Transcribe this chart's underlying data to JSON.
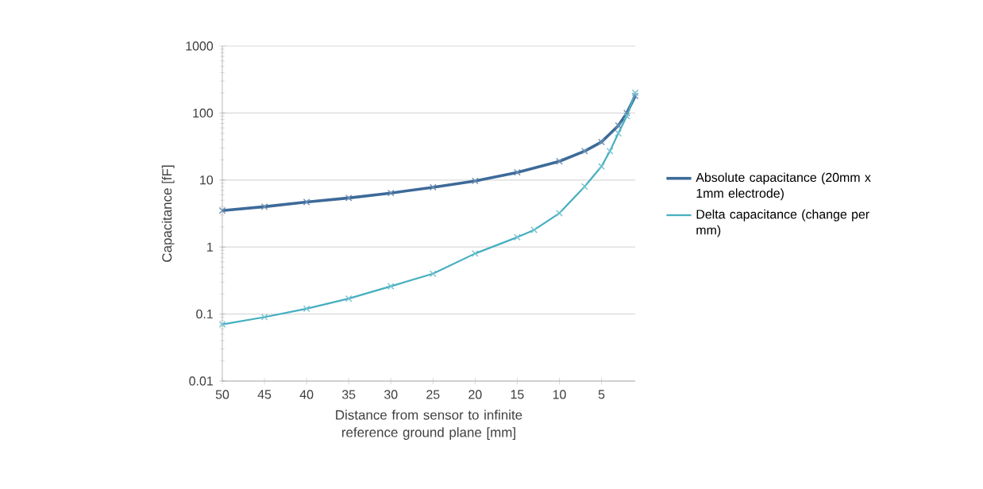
{
  "chart_data": {
    "type": "line",
    "xlabel": "Distance from sensor to infinite reference ground plane [mm]",
    "ylabel": "Capacitance [fF]",
    "log": "y",
    "xlim": [
      50,
      1
    ],
    "xticks": [
      50,
      45,
      40,
      35,
      30,
      25,
      20,
      15,
      10,
      5
    ],
    "ylim": [
      0.01,
      1000
    ],
    "yticks": [
      0.01,
      0.1,
      1,
      10,
      100,
      1000
    ],
    "grid": "y",
    "legend": "right",
    "marker": "cross",
    "line_style": "solid",
    "series": [
      {
        "name": "Absolute capacitance (20mm x 1mm electrode)",
        "color": "#3d6a99",
        "x": [
          50,
          45,
          40,
          35,
          30,
          25,
          20,
          15,
          10,
          7,
          5,
          3,
          2,
          1
        ],
        "values": [
          3.5,
          4.0,
          4.7,
          5.4,
          6.4,
          7.8,
          9.7,
          13,
          19,
          27,
          37,
          65,
          100,
          180
        ]
      },
      {
        "name": "Delta capacitance (change per mm)",
        "color": "#45aec0",
        "x": [
          50,
          45,
          40,
          35,
          30,
          25,
          20,
          15,
          13,
          10,
          7,
          5,
          4,
          3,
          2,
          1
        ],
        "values": [
          0.07,
          0.09,
          0.12,
          0.17,
          0.26,
          0.4,
          0.8,
          1.4,
          1.8,
          3.2,
          8,
          16,
          27,
          50,
          90,
          200
        ]
      }
    ]
  }
}
